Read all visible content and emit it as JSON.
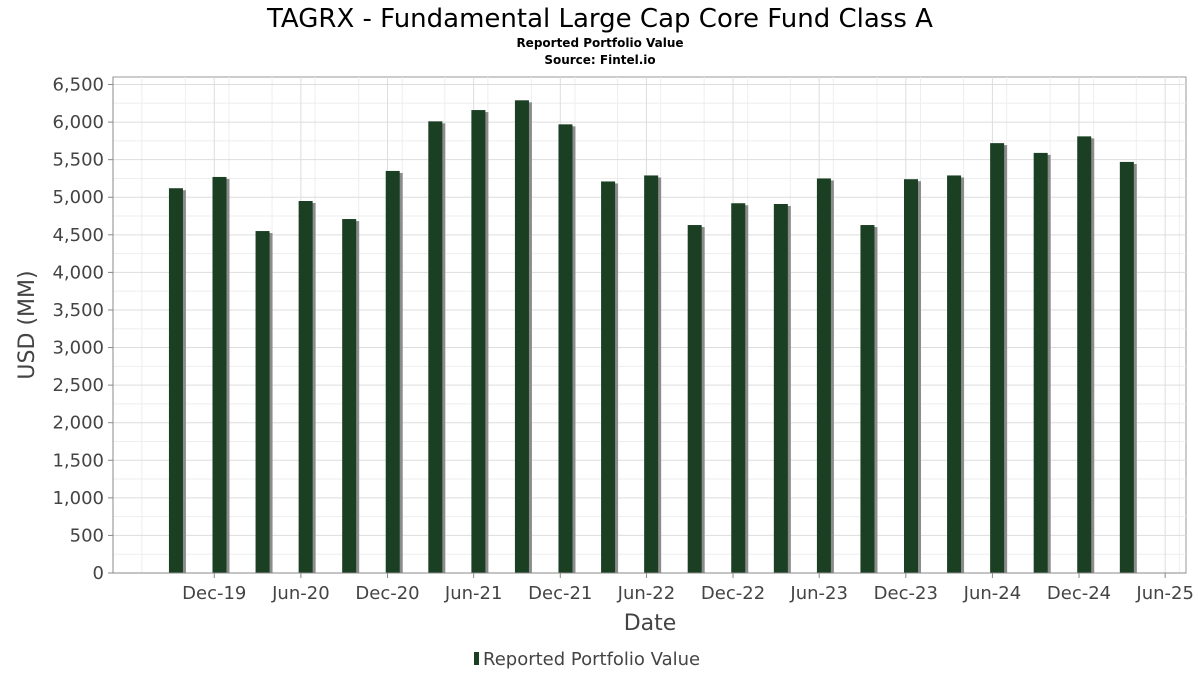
{
  "chart_data": {
    "type": "bar",
    "title": "TAGRX - Fundamental Large Cap Core Fund Class A",
    "subtitle": "Reported Portfolio Value",
    "source": "Source: Fintel.io",
    "xlabel": "Date",
    "ylabel": "USD (MM)",
    "ylim": [
      0,
      6600
    ],
    "yticks": [
      0,
      500,
      1000,
      1500,
      2000,
      2500,
      3000,
      3500,
      4000,
      4500,
      5000,
      5500,
      6000,
      6500
    ],
    "ytick_labels": [
      "0",
      "500",
      "1,000",
      "1,500",
      "2,000",
      "2,500",
      "3,000",
      "3,500",
      "4,000",
      "4,500",
      "5,000",
      "5,500",
      "6,000",
      "6,500"
    ],
    "xlim": [
      "2019-05-01",
      "2025-07-15"
    ],
    "xticks": [
      {
        "date": "2019-12-01",
        "label": "Dec-19"
      },
      {
        "date": "2020-06-01",
        "label": "Jun-20"
      },
      {
        "date": "2020-12-01",
        "label": "Dec-20"
      },
      {
        "date": "2021-06-01",
        "label": "Jun-21"
      },
      {
        "date": "2021-12-01",
        "label": "Dec-21"
      },
      {
        "date": "2022-06-01",
        "label": "Jun-22"
      },
      {
        "date": "2022-12-01",
        "label": "Dec-22"
      },
      {
        "date": "2023-06-01",
        "label": "Jun-23"
      },
      {
        "date": "2023-12-01",
        "label": "Dec-23"
      },
      {
        "date": "2024-06-01",
        "label": "Jun-24"
      },
      {
        "date": "2024-12-01",
        "label": "Dec-24"
      },
      {
        "date": "2025-06-01",
        "label": "Jun-25"
      }
    ],
    "grid": true,
    "legend_position": "bottom-center",
    "series": [
      {
        "name": "Reported Portfolio Value",
        "color": "#1a3f22",
        "points": [
          {
            "x": "2019-09-30",
            "y": 5120
          },
          {
            "x": "2019-12-31",
            "y": 5270
          },
          {
            "x": "2020-03-31",
            "y": 4550
          },
          {
            "x": "2020-06-30",
            "y": 4950
          },
          {
            "x": "2020-09-30",
            "y": 4710
          },
          {
            "x": "2020-12-31",
            "y": 5350
          },
          {
            "x": "2021-03-31",
            "y": 6010
          },
          {
            "x": "2021-06-30",
            "y": 6160
          },
          {
            "x": "2021-09-30",
            "y": 6290
          },
          {
            "x": "2021-12-31",
            "y": 5970
          },
          {
            "x": "2022-03-31",
            "y": 5210
          },
          {
            "x": "2022-06-30",
            "y": 5290
          },
          {
            "x": "2022-09-30",
            "y": 4630
          },
          {
            "x": "2022-12-31",
            "y": 4920
          },
          {
            "x": "2023-03-31",
            "y": 4910
          },
          {
            "x": "2023-06-30",
            "y": 5250
          },
          {
            "x": "2023-09-30",
            "y": 4630
          },
          {
            "x": "2023-12-31",
            "y": 5240
          },
          {
            "x": "2024-03-31",
            "y": 5290
          },
          {
            "x": "2024-06-30",
            "y": 5720
          },
          {
            "x": "2024-09-30",
            "y": 5590
          },
          {
            "x": "2024-12-31",
            "y": 5810
          },
          {
            "x": "2025-03-31",
            "y": 5470
          }
        ]
      }
    ]
  }
}
